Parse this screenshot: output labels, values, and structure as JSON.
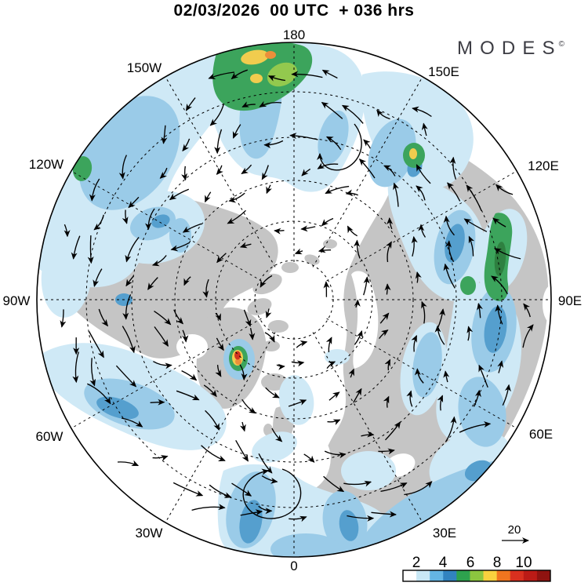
{
  "header": {
    "title": "02/03/2026  00 UTC  + 036 hrs",
    "logo_text": "MODES",
    "logo_mark": "©"
  },
  "map": {
    "ring_labels": [
      "180",
      "150E",
      "120E",
      "90E",
      "60E",
      "30E",
      "0",
      "30W",
      "60W",
      "90W",
      "120W",
      "150W"
    ]
  },
  "reference_arrow": {
    "label": "20"
  },
  "colorbar": {
    "tick_labels": [
      "2",
      "4",
      "6",
      "8",
      "10"
    ],
    "cell_colors": [
      "#ffffff",
      "#c9e8f5",
      "#64b5e3",
      "#3183bf",
      "#2ea24e",
      "#8cc63f",
      "#f9d13e",
      "#f0751f",
      "#d8301f",
      "#bb1b16",
      "#8f1310"
    ],
    "frame_color": "#000000"
  },
  "palette": {
    "land": "#c5c5c5",
    "shade_light_blue": "#cfe9f6",
    "shade_medium_blue": "#9acbe8",
    "shade_dark_blue": "#559fce",
    "shade_navy": "#3d85ba",
    "shade_green": "#3ca45c",
    "shade_dark_green": "#2e8040",
    "shade_yellow": "#f1cc4e",
    "shade_orange": "#ec8f3a",
    "shade_red": "#d23420",
    "arrow_color": "#000000"
  },
  "chart_data": {
    "type": "map",
    "projection": "north-polar-stereographic",
    "title": "02/03/2026 00 UTC + 036 hrs",
    "ring_longitudes": [
      "180",
      "150E",
      "120E",
      "90E",
      "60E",
      "30E",
      "0",
      "30W",
      "60W",
      "90W",
      "120W",
      "150W"
    ],
    "colorbar_tick_values": [
      2,
      4,
      6,
      8,
      10
    ],
    "colorbar_colors": [
      "#ffffff",
      "#c9e8f5",
      "#64b5e3",
      "#3183bf",
      "#2ea24e",
      "#8cc63f",
      "#f9d13e",
      "#f0751f",
      "#d8301f",
      "#bb1b16",
      "#8f1310"
    ],
    "reference_vector_value": 20,
    "legend_position": "bottom-right",
    "grid": "dashed graticule, 30-degree meridians, 5 latitude circles"
  }
}
